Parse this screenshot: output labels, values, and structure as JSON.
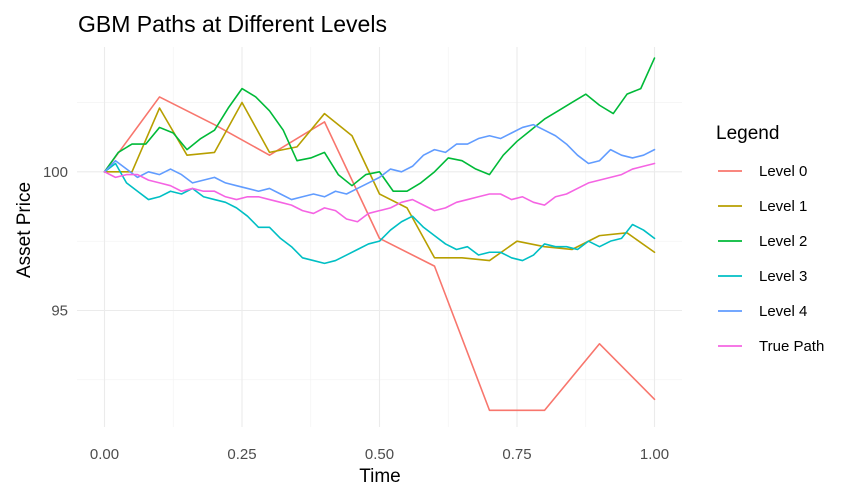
{
  "chart_data": {
    "type": "line",
    "title": "GBM Paths at Different Levels",
    "xlabel": "Time",
    "ylabel": "Asset Price",
    "xlim": [
      -0.05,
      1.05
    ],
    "ylim": [
      90.8,
      104.5
    ],
    "x_ticks": [
      0,
      0.25,
      0.5,
      0.75,
      1.0
    ],
    "x_tick_labels": [
      "0.00",
      "0.25",
      "0.50",
      "0.75",
      "1.00"
    ],
    "y_ticks": [
      95,
      100
    ],
    "y_tick_labels": [
      "95",
      "100"
    ],
    "y_minor_ticks": [
      92.5,
      97.5,
      102.5
    ],
    "x_minor_ticks": [
      0.125,
      0.375,
      0.625,
      0.875
    ],
    "grid": true,
    "legend": {
      "title": "Legend",
      "position": "right"
    },
    "series": [
      {
        "name": "Level 0",
        "color": "#F8766D",
        "x": [
          0,
          0.1,
          0.2,
          0.3,
          0.4,
          0.5,
          0.6,
          0.7,
          0.8,
          0.9,
          1.0
        ],
        "y": [
          100.0,
          102.7,
          101.7,
          100.6,
          101.8,
          97.6,
          96.6,
          91.4,
          91.4,
          93.8,
          91.8
        ]
      },
      {
        "name": "Level 1",
        "color": "#B79F00",
        "x": [
          0,
          0.05,
          0.1,
          0.15,
          0.2,
          0.25,
          0.3,
          0.35,
          0.4,
          0.45,
          0.5,
          0.55,
          0.6,
          0.65,
          0.7,
          0.75,
          0.8,
          0.85,
          0.9,
          0.95,
          1.0
        ],
        "y": [
          100.0,
          100.0,
          102.3,
          100.6,
          100.7,
          102.5,
          100.7,
          100.9,
          102.1,
          101.3,
          99.2,
          98.7,
          96.9,
          96.9,
          96.8,
          97.5,
          97.3,
          97.2,
          97.7,
          97.8,
          97.1
        ]
      },
      {
        "name": "Level 2",
        "color": "#00BA38",
        "x": [
          0,
          0.025,
          0.05,
          0.075,
          0.1,
          0.125,
          0.15,
          0.175,
          0.2,
          0.225,
          0.25,
          0.275,
          0.3,
          0.325,
          0.35,
          0.375,
          0.4,
          0.425,
          0.45,
          0.475,
          0.5,
          0.525,
          0.55,
          0.575,
          0.6,
          0.625,
          0.65,
          0.675,
          0.7,
          0.725,
          0.75,
          0.775,
          0.8,
          0.825,
          0.85,
          0.875,
          0.9,
          0.925,
          0.95,
          0.975,
          1.0
        ],
        "y": [
          100.0,
          100.7,
          101.0,
          101.0,
          101.6,
          101.4,
          100.8,
          101.2,
          101.5,
          102.3,
          103.0,
          102.7,
          102.2,
          101.5,
          100.4,
          100.5,
          100.7,
          99.9,
          99.5,
          99.9,
          100.0,
          99.3,
          99.3,
          99.6,
          100.0,
          100.5,
          100.4,
          100.1,
          99.9,
          100.6,
          101.1,
          101.5,
          101.9,
          102.2,
          102.5,
          102.8,
          102.4,
          102.1,
          102.8,
          103.0,
          104.1
        ]
      },
      {
        "name": "Level 3",
        "color": "#00BFC4",
        "x": [
          0,
          0.02,
          0.04,
          0.06,
          0.08,
          0.1,
          0.12,
          0.14,
          0.16,
          0.18,
          0.2,
          0.22,
          0.24,
          0.26,
          0.28,
          0.3,
          0.32,
          0.34,
          0.36,
          0.38,
          0.4,
          0.42,
          0.44,
          0.46,
          0.48,
          0.5,
          0.52,
          0.54,
          0.56,
          0.58,
          0.6,
          0.62,
          0.64,
          0.66,
          0.68,
          0.7,
          0.72,
          0.74,
          0.76,
          0.78,
          0.8,
          0.82,
          0.84,
          0.86,
          0.88,
          0.9,
          0.92,
          0.94,
          0.96,
          0.98,
          1.0
        ],
        "y": [
          100.0,
          100.3,
          99.6,
          99.3,
          99.0,
          99.1,
          99.3,
          99.2,
          99.4,
          99.1,
          99.0,
          98.9,
          98.7,
          98.4,
          98.0,
          98.0,
          97.6,
          97.3,
          96.9,
          96.8,
          96.7,
          96.8,
          97.0,
          97.2,
          97.4,
          97.5,
          97.9,
          98.2,
          98.4,
          98.0,
          97.7,
          97.4,
          97.2,
          97.3,
          97.0,
          97.1,
          97.1,
          96.9,
          96.8,
          97.0,
          97.4,
          97.3,
          97.3,
          97.2,
          97.5,
          97.3,
          97.5,
          97.6,
          98.1,
          97.9,
          97.6
        ]
      },
      {
        "name": "Level 4",
        "color": "#619CFF",
        "x": [
          0,
          0.02,
          0.04,
          0.06,
          0.08,
          0.1,
          0.12,
          0.14,
          0.16,
          0.18,
          0.2,
          0.22,
          0.24,
          0.26,
          0.28,
          0.3,
          0.32,
          0.34,
          0.36,
          0.38,
          0.4,
          0.42,
          0.44,
          0.46,
          0.48,
          0.5,
          0.52,
          0.54,
          0.56,
          0.58,
          0.6,
          0.62,
          0.64,
          0.66,
          0.68,
          0.7,
          0.72,
          0.74,
          0.76,
          0.78,
          0.8,
          0.82,
          0.84,
          0.86,
          0.88,
          0.9,
          0.92,
          0.94,
          0.96,
          0.98,
          1.0
        ],
        "y": [
          100.0,
          100.4,
          100.1,
          99.8,
          100.0,
          99.9,
          100.1,
          99.9,
          99.6,
          99.7,
          99.8,
          99.6,
          99.5,
          99.4,
          99.3,
          99.4,
          99.2,
          99.0,
          99.1,
          99.2,
          99.1,
          99.3,
          99.2,
          99.4,
          99.6,
          99.8,
          100.1,
          100.0,
          100.2,
          100.6,
          100.8,
          100.7,
          101.0,
          101.0,
          101.2,
          101.3,
          101.2,
          101.4,
          101.6,
          101.7,
          101.5,
          101.3,
          101.0,
          100.6,
          100.3,
          100.4,
          100.8,
          100.6,
          100.5,
          100.6,
          100.8
        ]
      },
      {
        "name": "True Path",
        "color": "#F564E3",
        "x": [
          0,
          0.02,
          0.04,
          0.06,
          0.08,
          0.1,
          0.12,
          0.14,
          0.16,
          0.18,
          0.2,
          0.22,
          0.24,
          0.26,
          0.28,
          0.3,
          0.32,
          0.34,
          0.36,
          0.38,
          0.4,
          0.42,
          0.44,
          0.46,
          0.48,
          0.5,
          0.52,
          0.54,
          0.56,
          0.58,
          0.6,
          0.62,
          0.64,
          0.66,
          0.68,
          0.7,
          0.72,
          0.74,
          0.76,
          0.78,
          0.8,
          0.82,
          0.84,
          0.86,
          0.88,
          0.9,
          0.92,
          0.94,
          0.96,
          0.98,
          1.0
        ],
        "y": [
          100.0,
          99.8,
          99.9,
          99.9,
          99.7,
          99.6,
          99.5,
          99.3,
          99.4,
          99.3,
          99.3,
          99.1,
          99.0,
          99.1,
          99.1,
          99.0,
          98.9,
          98.8,
          98.6,
          98.5,
          98.7,
          98.6,
          98.3,
          98.2,
          98.5,
          98.6,
          98.7,
          98.9,
          99.0,
          98.8,
          98.6,
          98.7,
          98.9,
          99.0,
          99.1,
          99.2,
          99.2,
          99.0,
          99.1,
          98.9,
          98.8,
          99.1,
          99.2,
          99.4,
          99.6,
          99.7,
          99.8,
          99.9,
          100.1,
          100.2,
          100.3
        ]
      }
    ]
  }
}
